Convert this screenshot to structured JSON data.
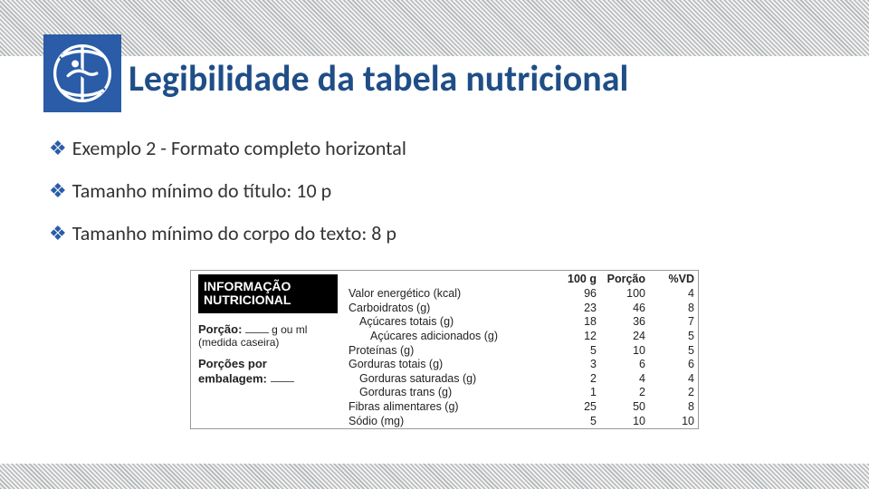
{
  "colors": {
    "brand_blue": "#2a5ca7",
    "title_blue": "#1f4e87",
    "hatch_dark": "#b3b6b8",
    "hatch_light": "#f2f2f2",
    "text": "#333333",
    "table_border": "#999999"
  },
  "title": "Legibilidade da tabela nutricional",
  "bullets": [
    "Exemplo 2 - Formato completo horizontal",
    "Tamanho mínimo do título: 10 p",
    "Tamanho mínimo do corpo do texto: 8 p"
  ],
  "nutri_table": {
    "left": {
      "badge_line1": "INFORMAÇÃO",
      "badge_line2": "NUTRICIONAL",
      "porcao_label": "Porção:",
      "porcao_unit": "g ou ml",
      "porcao_note": "(medida caseira)",
      "porcoes_line1": "Porções por",
      "porcoes_line2": "embalagem:"
    },
    "headers": [
      "",
      "100 g",
      "Porção",
      "%VD"
    ],
    "rows": [
      {
        "label": "Valor energético (kcal)",
        "indent": 0,
        "v100g": "96",
        "vporc": "100",
        "vvd": "4"
      },
      {
        "label": "Carboidratos (g)",
        "indent": 0,
        "v100g": "23",
        "vporc": "46",
        "vvd": "8"
      },
      {
        "label": "Açúcares totais (g)",
        "indent": 1,
        "v100g": "18",
        "vporc": "36",
        "vvd": "7"
      },
      {
        "label": "Açúcares adicionados (g)",
        "indent": 2,
        "v100g": "12",
        "vporc": "24",
        "vvd": "5"
      },
      {
        "label": "Proteínas (g)",
        "indent": 0,
        "v100g": "5",
        "vporc": "10",
        "vvd": "5"
      },
      {
        "label": "Gorduras totais (g)",
        "indent": 0,
        "v100g": "3",
        "vporc": "6",
        "vvd": "6"
      },
      {
        "label": "Gorduras saturadas (g)",
        "indent": 1,
        "v100g": "2",
        "vporc": "4",
        "vvd": "4"
      },
      {
        "label": "Gorduras trans (g)",
        "indent": 1,
        "v100g": "1",
        "vporc": "2",
        "vvd": "2"
      },
      {
        "label": "Fibras alimentares (g)",
        "indent": 0,
        "v100g": "25",
        "vporc": "50",
        "vvd": "8"
      },
      {
        "label": "Sódio (mg)",
        "indent": 0,
        "v100g": "5",
        "vporc": "10",
        "vvd": "10"
      }
    ]
  }
}
